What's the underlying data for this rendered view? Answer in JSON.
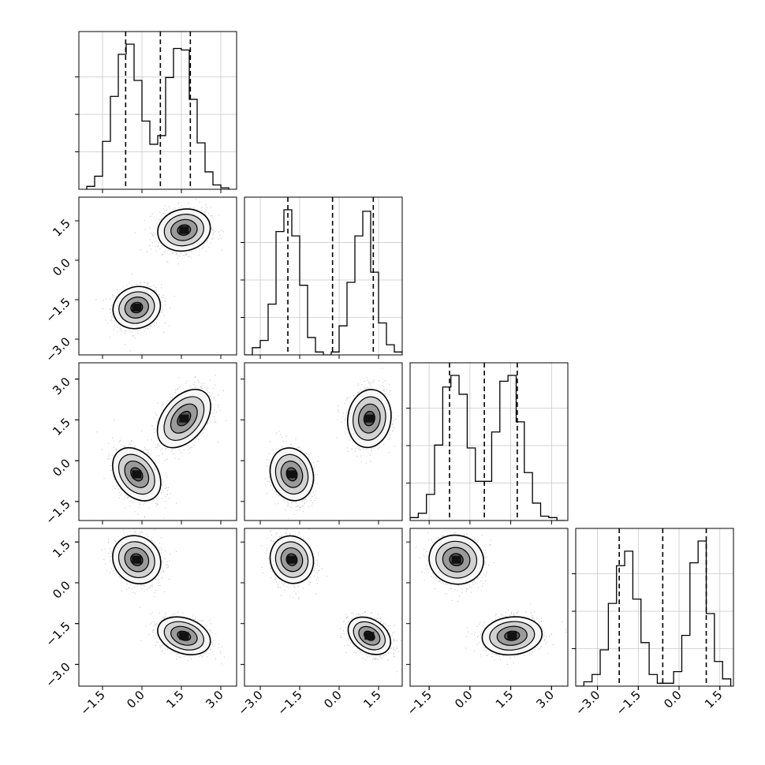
{
  "chart_data": {
    "type": "corner",
    "grid": true,
    "parameters": [
      {
        "range": [
          -2.4,
          3.6
        ],
        "ticks": [
          -1.5,
          0.0,
          1.5,
          3.0
        ],
        "tick_labels": [
          "−1.5",
          "0.0",
          "1.5",
          "3.0"
        ],
        "quantiles": [
          -0.62,
          0.7,
          1.84
        ],
        "hist_bins": [
          -2.1,
          -1.8,
          -1.5,
          -1.2,
          -0.9,
          -0.6,
          -0.3,
          0.0,
          0.3,
          0.6,
          0.9,
          1.2,
          1.5,
          1.8,
          2.1,
          2.4,
          2.7,
          3.0,
          3.3
        ],
        "hist_counts": [
          0.02,
          0.09,
          0.33,
          0.64,
          0.93,
          1.0,
          0.75,
          0.47,
          0.31,
          0.37,
          0.77,
          0.97,
          0.96,
          0.62,
          0.32,
          0.12,
          0.03,
          0.01
        ],
        "modes": [
          {
            "mean": -0.2,
            "sd": 0.45,
            "w": 0.5
          },
          {
            "mean": 1.6,
            "sd": 0.5,
            "w": 0.5
          }
        ]
      },
      {
        "range": [
          -3.6,
          2.4
        ],
        "ticks": [
          -3.0,
          -1.5,
          0.0,
          1.5
        ],
        "tick_labels": [
          "−3.0",
          "−1.5",
          "0.0",
          "1.5"
        ],
        "quantiles": [
          -1.95,
          -0.25,
          1.3
        ],
        "hist_bins": [
          -3.6,
          -3.3,
          -3.0,
          -2.7,
          -2.4,
          -2.1,
          -1.8,
          -1.5,
          -1.2,
          -0.9,
          -0.6,
          -0.3,
          0.0,
          0.3,
          0.6,
          0.9,
          1.2,
          1.5,
          1.8,
          2.1,
          2.4
        ],
        "hist_counts": [
          0.0,
          0.05,
          0.1,
          0.35,
          0.85,
          1.0,
          0.82,
          0.48,
          0.12,
          0.02,
          0.0,
          0.02,
          0.2,
          0.5,
          0.82,
          0.99,
          0.57,
          0.22,
          0.07,
          0.02
        ],
        "modes": [
          {
            "mean": -1.8,
            "sd": 0.4,
            "w": 0.5
          },
          {
            "mean": 1.15,
            "sd": 0.4,
            "w": 0.5
          }
        ]
      },
      {
        "range": [
          -2.2,
          3.6
        ],
        "ticks": [
          -1.5,
          0.0,
          1.5,
          3.0
        ],
        "tick_labels": [
          "−1.5",
          "0.0",
          "1.5",
          "3.0"
        ],
        "quantiles": [
          -0.75,
          0.53,
          1.74
        ],
        "hist_bins": [
          -2.2,
          -1.9,
          -1.6,
          -1.3,
          -1.0,
          -0.7,
          -0.4,
          -0.1,
          0.2,
          0.5,
          0.8,
          1.1,
          1.4,
          1.7,
          2.0,
          2.3,
          2.6,
          2.9,
          3.2,
          3.5
        ],
        "hist_counts": [
          0.02,
          0.05,
          0.18,
          0.52,
          0.92,
          1.0,
          0.87,
          0.5,
          0.27,
          0.27,
          0.61,
          0.96,
          1.0,
          0.68,
          0.33,
          0.12,
          0.03,
          0.02,
          0.0
        ],
        "modes": [
          {
            "mean": -0.5,
            "sd": 0.5,
            "w": 0.5
          },
          {
            "mean": 1.55,
            "sd": 0.55,
            "w": 0.5
          }
        ]
      },
      {
        "range": [
          -3.8,
          2.0
        ],
        "ticks": [
          -3.0,
          -1.5,
          0.0,
          1.5
        ],
        "tick_labels": [
          "−3.0",
          "−1.5",
          "0.0",
          "1.5"
        ],
        "quantiles": [
          -2.2,
          -0.6,
          1.0
        ],
        "hist_bins": [
          -3.8,
          -3.5,
          -3.2,
          -2.9,
          -2.6,
          -2.3,
          -2.0,
          -1.7,
          -1.4,
          -1.1,
          -0.8,
          -0.5,
          -0.2,
          0.1,
          0.4,
          0.7,
          1.0,
          1.3,
          1.6,
          1.9
        ],
        "hist_counts": [
          0.0,
          0.03,
          0.08,
          0.25,
          0.57,
          0.83,
          0.93,
          0.6,
          0.3,
          0.08,
          0.02,
          0.02,
          0.1,
          0.35,
          0.85,
          1.0,
          0.5,
          0.17,
          0.05
        ],
        "modes": [
          {
            "mean": -1.95,
            "sd": 0.45,
            "w": 0.5
          },
          {
            "mean": 0.85,
            "sd": 0.35,
            "w": 0.5
          }
        ]
      }
    ],
    "pairs": [
      {
        "x": 0,
        "y": 1,
        "modes": [
          {
            "mx": -0.2,
            "my": -1.8,
            "rho": 0.1
          },
          {
            "mx": 1.6,
            "my": 1.15,
            "rho": 0.1
          }
        ]
      },
      {
        "x": 0,
        "y": 2,
        "modes": [
          {
            "mx": -0.2,
            "my": -0.5,
            "rho": -0.35
          },
          {
            "mx": 1.6,
            "my": 1.55,
            "rho": 0.45
          }
        ]
      },
      {
        "x": 1,
        "y": 2,
        "modes": [
          {
            "mx": -1.8,
            "my": -0.5,
            "rho": -0.15
          },
          {
            "mx": 1.15,
            "my": 1.55,
            "rho": 0.1
          }
        ]
      },
      {
        "x": 0,
        "y": 3,
        "modes": [
          {
            "mx": -0.2,
            "my": 0.85,
            "rho": -0.15
          },
          {
            "mx": 1.6,
            "my": -1.95,
            "rho": -0.3
          }
        ]
      },
      {
        "x": 1,
        "y": 3,
        "modes": [
          {
            "mx": -1.8,
            "my": 0.85,
            "rho": -0.1
          },
          {
            "mx": 1.15,
            "my": -1.95,
            "rho": -0.35
          }
        ]
      },
      {
        "x": 2,
        "y": 3,
        "modes": [
          {
            "mx": -0.5,
            "my": 0.85,
            "rho": -0.05
          },
          {
            "mx": 1.55,
            "my": -1.95,
            "rho": 0.1
          }
        ]
      }
    ]
  }
}
